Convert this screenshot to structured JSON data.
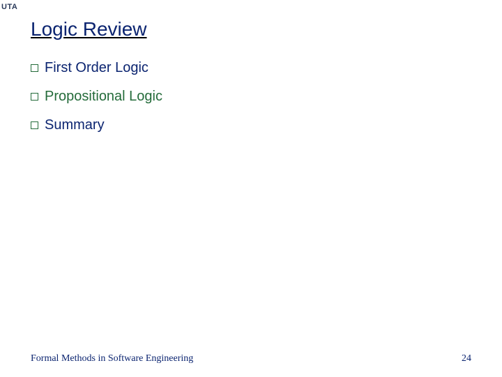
{
  "logo": {
    "text": "UTA",
    "color": "#2a3a5a"
  },
  "title": {
    "text": "Logic Review",
    "color": "#0b2470"
  },
  "bullets": [
    {
      "text": "First Order Logic",
      "color": "#0b2470",
      "marker_color": "#246b3a"
    },
    {
      "text": "Propositional Logic",
      "color": "#246b3a",
      "marker_color": "#246b3a"
    },
    {
      "text": "Summary",
      "color": "#0b2470",
      "marker_color": "#246b3a"
    }
  ],
  "footer": {
    "left_text": "Formal Methods in Software Engineering",
    "right_text": "24",
    "color": "#0b2470"
  }
}
